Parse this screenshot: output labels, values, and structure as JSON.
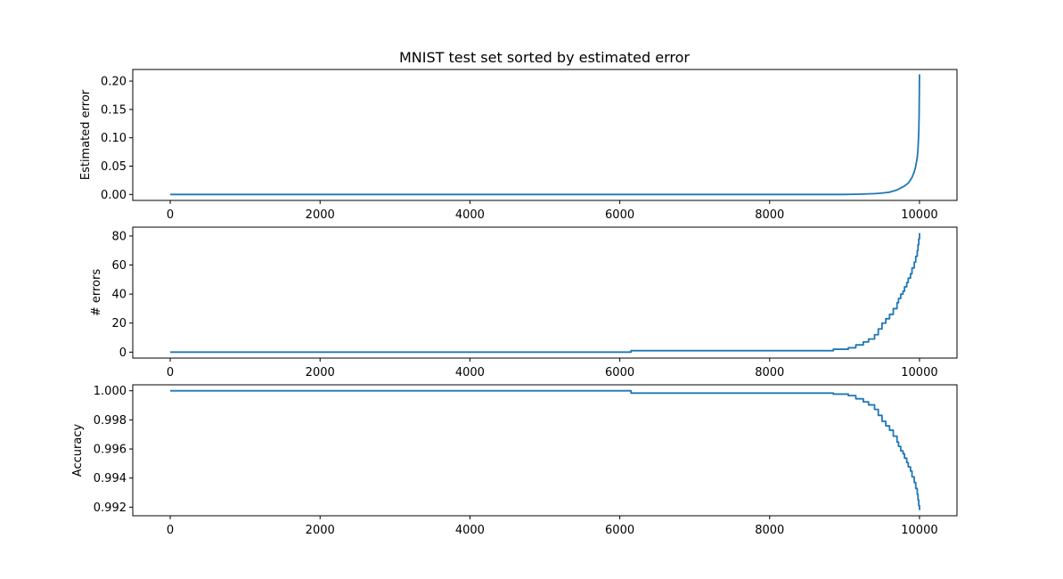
{
  "figure": {
    "title": "MNIST test set sorted by estimated error",
    "line_color": "#1f77b4"
  },
  "chart_data": [
    {
      "type": "line",
      "title": "MNIST test set sorted by estimated error",
      "xlabel": "",
      "ylabel": "Estimated error",
      "xlim": [
        -500,
        10500
      ],
      "ylim": [
        -0.0105,
        0.2205
      ],
      "xticks": [
        0,
        2000,
        4000,
        6000,
        8000,
        10000
      ],
      "xtick_labels": [
        "0",
        "2000",
        "4000",
        "6000",
        "8000",
        "10000"
      ],
      "yticks": [
        0.0,
        0.05,
        0.1,
        0.15,
        0.2
      ],
      "ytick_labels": [
        "0.00",
        "0.05",
        "0.10",
        "0.15",
        "0.20"
      ],
      "grid": false,
      "x": [
        0,
        2000,
        4000,
        6000,
        8000,
        9000,
        9200,
        9400,
        9500,
        9600,
        9700,
        9800,
        9850,
        9900,
        9930,
        9950,
        9970,
        9980,
        9990,
        9995,
        10000
      ],
      "y": [
        0.0,
        0.0,
        0.0,
        0.0,
        0.0,
        0.0,
        0.0005,
        0.0015,
        0.0025,
        0.004,
        0.008,
        0.015,
        0.02,
        0.03,
        0.04,
        0.05,
        0.065,
        0.08,
        0.11,
        0.14,
        0.212
      ]
    },
    {
      "type": "line",
      "xlabel": "",
      "ylabel": "# errors",
      "xlim": [
        -500,
        10500
      ],
      "ylim": [
        -4.1,
        86.1
      ],
      "xticks": [
        0,
        2000,
        4000,
        6000,
        8000,
        10000
      ],
      "xtick_labels": [
        "0",
        "2000",
        "4000",
        "6000",
        "8000",
        "10000"
      ],
      "yticks": [
        0,
        20,
        40,
        60,
        80
      ],
      "ytick_labels": [
        "0",
        "20",
        "40",
        "60",
        "80"
      ],
      "grid": false,
      "step": true,
      "x": [
        0,
        6150,
        8850,
        9050,
        9150,
        9250,
        9320,
        9400,
        9450,
        9500,
        9550,
        9600,
        9650,
        9700,
        9720,
        9750,
        9780,
        9800,
        9830,
        9850,
        9880,
        9900,
        9930,
        9950,
        9970,
        9980,
        9990,
        10000
      ],
      "y": [
        0,
        1,
        2,
        3,
        5,
        7,
        9,
        12,
        16,
        20,
        23,
        26,
        30,
        34,
        37,
        40,
        42,
        45,
        48,
        51,
        54,
        58,
        62,
        66,
        70,
        74,
        78,
        82
      ]
    },
    {
      "type": "line",
      "xlabel": "",
      "ylabel": "Accuracy",
      "xlim": [
        -500,
        10500
      ],
      "ylim": [
        0.99141,
        1.00041
      ],
      "xticks": [
        0,
        2000,
        4000,
        6000,
        8000,
        10000
      ],
      "xtick_labels": [
        "0",
        "2000",
        "4000",
        "6000",
        "8000",
        "10000"
      ],
      "yticks": [
        0.992,
        0.994,
        0.996,
        0.998,
        1.0
      ],
      "ytick_labels": [
        "0.992",
        "0.994",
        "0.996",
        "0.998",
        "1.000"
      ],
      "grid": false,
      "step": true,
      "x": [
        0,
        6150,
        8850,
        9050,
        9150,
        9250,
        9320,
        9400,
        9450,
        9500,
        9550,
        9600,
        9650,
        9700,
        9720,
        9750,
        9780,
        9800,
        9830,
        9850,
        9880,
        9900,
        9930,
        9950,
        9970,
        9980,
        9990,
        10000
      ],
      "y": [
        1.0,
        0.99984,
        0.99977,
        0.99967,
        0.99945,
        0.99924,
        0.99903,
        0.99872,
        0.99831,
        0.9979,
        0.99759,
        0.99729,
        0.99688,
        0.99648,
        0.99618,
        0.99587,
        0.99567,
        0.99537,
        0.99507,
        0.99477,
        0.99448,
        0.99408,
        0.99369,
        0.99329,
        0.99289,
        0.9925,
        0.99211,
        0.9918
      ]
    }
  ]
}
